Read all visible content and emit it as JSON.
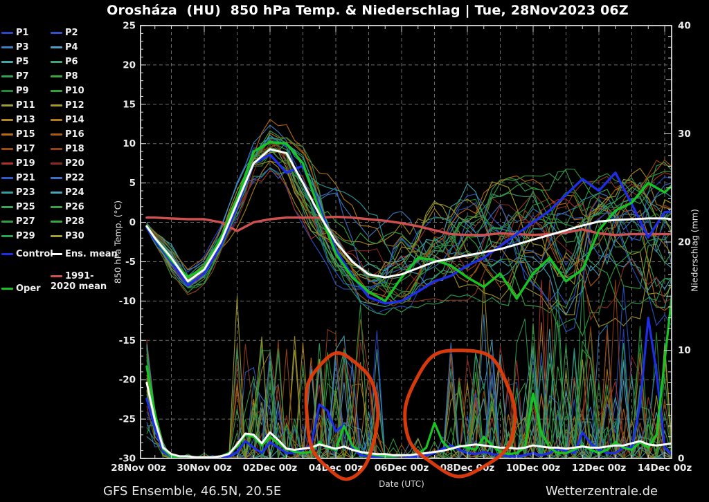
{
  "title": "Orosháza  (HU)  850 hPa Temp. & Niederschlag | Tue, 28Nov2023 06Z",
  "footer": {
    "left": "GFS Ensemble, 46.5N, 20.5E",
    "right": "Wetterzentrale.de"
  },
  "legend": {
    "members": [
      {
        "label": "P1",
        "color": "#2746c8"
      },
      {
        "label": "P2",
        "color": "#2b55c8"
      },
      {
        "label": "P3",
        "color": "#3b82c4"
      },
      {
        "label": "P4",
        "color": "#4d9fc4"
      },
      {
        "label": "P5",
        "color": "#3fa8a4"
      },
      {
        "label": "P6",
        "color": "#3da87c"
      },
      {
        "label": "P7",
        "color": "#35a254"
      },
      {
        "label": "P8",
        "color": "#3aa83f"
      },
      {
        "label": "P9",
        "color": "#228c35"
      },
      {
        "label": "P10",
        "color": "#2fa03e"
      },
      {
        "label": "P11",
        "color": "#a0a031"
      },
      {
        "label": "P12",
        "color": "#a89a28"
      },
      {
        "label": "P13",
        "color": "#b08a1f"
      },
      {
        "label": "P14",
        "color": "#b57a18"
      },
      {
        "label": "P15",
        "color": "#bd6a12"
      },
      {
        "label": "P16",
        "color": "#aa5c10"
      },
      {
        "label": "P17",
        "color": "#a04a12"
      },
      {
        "label": "P18",
        "color": "#964016"
      },
      {
        "label": "P19",
        "color": "#b03228"
      },
      {
        "label": "P20",
        "color": "#8e2a20"
      },
      {
        "label": "P21",
        "color": "#2c5ccc"
      },
      {
        "label": "P22",
        "color": "#3a70c8"
      },
      {
        "label": "P23",
        "color": "#35a0a0"
      },
      {
        "label": "P24",
        "color": "#46a8b8"
      },
      {
        "label": "P25",
        "color": "#38a858"
      },
      {
        "label": "P26",
        "color": "#3ba046"
      },
      {
        "label": "P27",
        "color": "#2f9f48"
      },
      {
        "label": "P28",
        "color": "#36a83c"
      },
      {
        "label": "P29",
        "color": "#2aa452"
      },
      {
        "label": "P30",
        "color": "#a6a02a"
      }
    ],
    "control": {
      "label": "Control",
      "color": "#1e2ee6"
    },
    "ens_mean": {
      "label": "Ens. mean",
      "color": "#ffffff"
    },
    "climate_mean": {
      "label": "1991-2020 mean",
      "color": "#d05050"
    },
    "oper": {
      "label": "Oper",
      "color": "#16c424"
    }
  },
  "chart_data": {
    "type": "line",
    "title": "Orosháza (HU) 850 hPa Temp. & Niederschlag | Tue, 28Nov2023 06Z",
    "xlabel": "Date (UTC)",
    "ylabel_left": "850 hPa Temp. (°C)",
    "ylabel_right": "Niederschlag (mm)",
    "x_start_day": 0.25,
    "x_end_day": 16.25,
    "x_tick_labels": [
      "28Nov 00z",
      "30Nov 00z",
      "02Dec 00z",
      "04Dec 00z",
      "06Dec 00z",
      "08Dec 00z",
      "10Dec 00z",
      "12Dec 00z",
      "14Dec 00z"
    ],
    "x_tick_days": [
      0,
      2,
      4,
      6,
      8,
      10,
      12,
      14,
      16
    ],
    "temp_axis": {
      "min": -30,
      "max": 25,
      "tick_step": 5,
      "tick_labels": [
        "25",
        "20",
        "15",
        "10",
        "5",
        "0",
        "-5",
        "-10",
        "-15",
        "-20",
        "-25",
        "-30"
      ]
    },
    "precip_axis": {
      "min": 0,
      "max": 40,
      "tick_step": 10,
      "tick_labels": [
        "40",
        "30",
        "20",
        "10",
        "0"
      ]
    },
    "grid": {
      "vertical_every_days": 1,
      "horizontal_every_c": 5,
      "style": "dashed"
    },
    "x_days": [
      0.25,
      0.5,
      1,
      1.5,
      2,
      2.5,
      3,
      3.5,
      4,
      4.5,
      5,
      5.5,
      6,
      6.5,
      7,
      7.5,
      8,
      8.5,
      9,
      9.5,
      10,
      10.5,
      11,
      11.5,
      12,
      12.5,
      13,
      13.5,
      14,
      14.5,
      15,
      15.5,
      16,
      16.25
    ],
    "series": [
      {
        "name": "Ens. mean",
        "unit": "degC",
        "color": "#ffffff",
        "width": 3,
        "values": [
          -0.5,
          -2,
          -4.5,
          -7.5,
          -6,
          -2.5,
          2.5,
          7.5,
          9.3,
          8.8,
          5,
          1,
          -2.5,
          -5,
          -6.6,
          -7,
          -6.6,
          -5.8,
          -5,
          -4.6,
          -4.2,
          -3.8,
          -3.4,
          -2.8,
          -2.2,
          -1.6,
          -1,
          -0.4,
          0.1,
          0.3,
          0.4,
          0.5,
          0.5,
          0.4
        ]
      },
      {
        "name": "Control",
        "unit": "degC",
        "color": "#1e2ee6",
        "width": 3.4,
        "values": [
          -0.7,
          -2.3,
          -5,
          -8,
          -6.5,
          -3,
          2,
          7.5,
          8.6,
          6.3,
          7.2,
          2,
          -3.5,
          -6.8,
          -9.5,
          -10.3,
          -10,
          -8.8,
          -7.5,
          -6.8,
          -5.5,
          -4.5,
          -3,
          -1.5,
          0,
          1.5,
          3.5,
          5.5,
          4,
          6.3,
          2.3,
          -1.9,
          1.3,
          1.3
        ]
      },
      {
        "name": "Oper",
        "unit": "degC",
        "color": "#16c424",
        "width": 3.4,
        "values": [
          -0.5,
          -2,
          -4.8,
          -7,
          -5.8,
          -2,
          3,
          9,
          10.2,
          10,
          7.5,
          1.5,
          -4,
          -7,
          -8.8,
          -10,
          -7,
          -4.5,
          -4.8,
          -5.5,
          -7,
          -8.2,
          -6.5,
          -9.7,
          -6.5,
          -4.5,
          -7.5,
          -6,
          -1,
          1.5,
          2.5,
          5,
          3.8,
          4.8
        ]
      },
      {
        "name": "1991-2020 mean",
        "unit": "degC",
        "color": "#d05050",
        "width": 3.4,
        "values": [
          0.6,
          0.6,
          0.5,
          0.4,
          0.4,
          0,
          -1.1,
          0,
          0.4,
          0.6,
          0.6,
          0.6,
          0.7,
          0.6,
          0.4,
          0.2,
          -0.1,
          -0.5,
          -1,
          -1.5,
          -1.6,
          -1.6,
          -1.4,
          -1.5,
          -1.6,
          -1.5,
          -1.3,
          -0.9,
          -1.4,
          -1.6,
          -1.5,
          -1.5,
          -1.5,
          -1.5
        ]
      }
    ],
    "precip_series": [
      {
        "name": "Ens. mean",
        "unit": "mm",
        "color": "#ffffff",
        "width": 3,
        "start_day": 0.25,
        "step_day": 0.25,
        "values": [
          7,
          3.5,
          1,
          0.4,
          0.2,
          0.2,
          0.1,
          0.1,
          0.1,
          0.2,
          0.4,
          1.3,
          2.3,
          2.2,
          1.4,
          2.4,
          1.7,
          0.9,
          0.8,
          0.9,
          1,
          1.3,
          1.1,
          0.9,
          1.1,
          0.8,
          0.6,
          0.5,
          0.4,
          0.4,
          0.3,
          0.3,
          0.3,
          0.4,
          0.5,
          0.6,
          0.7,
          0.9,
          1.1,
          1.2,
          1.3,
          1.2,
          1.1,
          1,
          1,
          0.9,
          1,
          1.2,
          1.1,
          1,
          1,
          0.9,
          1,
          1.1,
          1,
          1,
          1.1,
          1.2,
          1.2,
          1.4,
          1.6,
          1.3,
          1.2,
          1.3,
          1.4
        ]
      },
      {
        "name": "Control",
        "unit": "mm",
        "color": "#1e2ee6",
        "width": 3.2,
        "start_day": 0.25,
        "step_day": 0.25,
        "values": [
          5.5,
          2.8,
          0.6,
          0.2,
          0,
          0,
          0,
          0,
          0,
          0,
          0.2,
          0.6,
          1.6,
          1,
          0.5,
          1.5,
          1,
          0.5,
          0.5,
          0.8,
          1.2,
          5,
          4.4,
          2.5,
          3.1,
          1,
          0.3,
          0.2,
          0.1,
          0.1,
          0,
          0,
          0.1,
          0.2,
          0.3,
          0.5,
          0.9,
          1.2,
          0.8,
          0.5,
          0.4,
          0.6,
          0.4,
          0.3,
          0.2,
          0.2,
          0.3,
          0.5,
          0.3,
          0.5,
          0.9,
          0.7,
          0.5,
          2.4,
          1.4,
          0.8,
          0.5,
          0.5,
          1,
          1,
          5,
          13,
          8,
          1,
          0.3
        ]
      },
      {
        "name": "Oper",
        "unit": "mm",
        "color": "#16c424",
        "width": 3.2,
        "start_day": 0.25,
        "step_day": 0.25,
        "values": [
          8.5,
          4.2,
          0.9,
          0.2,
          0.1,
          0.1,
          0.1,
          0.1,
          0.1,
          0.2,
          0.5,
          1.1,
          2.2,
          2,
          1.2,
          2,
          1.4,
          0.9,
          0.6,
          0.5,
          0.6,
          1.5,
          1,
          0.8,
          3,
          1.2,
          0.6,
          0.4,
          0.3,
          0.2,
          0.2,
          0.3,
          0.3,
          0.4,
          1,
          3.3,
          1.5,
          0.8,
          1.2,
          1,
          0.8,
          2,
          1.2,
          0.6,
          0.4,
          0.5,
          1,
          6,
          2.4,
          1,
          0.5,
          0.5,
          0.8,
          1.2,
          0.8,
          0.5,
          0.8,
          1.5,
          1,
          0.8,
          1.5,
          1,
          2.2,
          9,
          16
        ]
      }
    ],
    "ensemble_members": {
      "count": 30,
      "colors": [
        "#2746c8",
        "#2b55c8",
        "#3b82c4",
        "#4d9fc4",
        "#3fa8a4",
        "#3da87c",
        "#35a254",
        "#3aa83f",
        "#228c35",
        "#2fa03e",
        "#a0a031",
        "#a89a28",
        "#b08a1f",
        "#b57a18",
        "#bd6a12",
        "#aa5c10",
        "#a04a12",
        "#964016",
        "#b03228",
        "#8e2a20",
        "#2c5ccc",
        "#3a70c8",
        "#35a0a0",
        "#46a8b8",
        "#38a858",
        "#3ba046",
        "#2f9f48",
        "#36a83c",
        "#2aa452",
        "#a6a02a"
      ],
      "temp_envelope": {
        "lower": [
          -1,
          -3,
          -6.5,
          -9.2,
          -8,
          -4.5,
          -0.5,
          3.5,
          6,
          4,
          0,
          -4,
          -7.5,
          -9.5,
          -10.8,
          -11.5,
          -11,
          -10.5,
          -10,
          -9.5,
          -9.5,
          -9.8,
          -10.2,
          -11,
          -12,
          -13,
          -13.5,
          -14,
          -13,
          -12.5,
          -13,
          -14,
          -13,
          -13
        ],
        "upper": [
          0.3,
          -0.8,
          -3,
          -6,
          -4.5,
          -0.5,
          5,
          10,
          13,
          12.5,
          10.5,
          8,
          5,
          3,
          1,
          0.5,
          1,
          1.5,
          3,
          3.5,
          4.5,
          4.5,
          5,
          5.5,
          5.5,
          6,
          6.5,
          7,
          7,
          7,
          7.5,
          7.5,
          7.5,
          7.5
        ]
      },
      "precip_activity_windows": [
        {
          "from_day": 0.25,
          "to_day": 0.8,
          "max_mm": 11
        },
        {
          "from_day": 0.8,
          "to_day": 3.0,
          "max_mm": 0.5
        },
        {
          "from_day": 3.0,
          "to_day": 7.4,
          "max_mm": 12
        },
        {
          "from_day": 7.4,
          "to_day": 9.4,
          "max_mm": 2
        },
        {
          "from_day": 9.4,
          "to_day": 11.3,
          "max_mm": 11
        },
        {
          "from_day": 11.3,
          "to_day": 16.25,
          "max_mm": 13
        }
      ]
    },
    "annotations": {
      "color": "#e23c0c",
      "stroke_width": 5,
      "shapes": [
        {
          "shape": "hand-ellipse",
          "cx_day": 6.17,
          "cy_mm": 4.0,
          "rx_days": 1.09,
          "ry_mm": 5.6,
          "rotation_deg": -4
        },
        {
          "shape": "hand-ellipse",
          "cx_day": 9.78,
          "cy_mm": 4.3,
          "rx_days": 1.64,
          "ry_mm": 5.8,
          "rotation_deg": 2
        }
      ]
    }
  },
  "render_seed": 11
}
